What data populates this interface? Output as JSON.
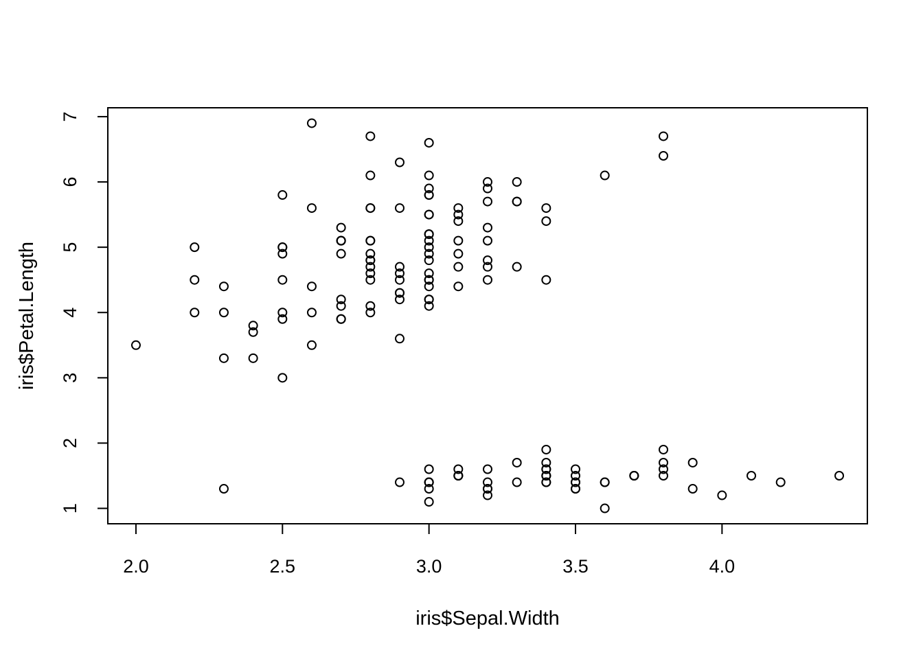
{
  "chart_data": {
    "type": "scatter",
    "title": "",
    "xlabel": "iris$Sepal.Width",
    "ylabel": "iris$Petal.Length",
    "xlim": [
      1.904,
      4.496
    ],
    "ylim": [
      0.764,
      7.136
    ],
    "x_ticks": [
      {
        "value": 2.0,
        "label": "2.0"
      },
      {
        "value": 2.5,
        "label": "2.5"
      },
      {
        "value": 3.0,
        "label": "3.0"
      },
      {
        "value": 3.5,
        "label": "3.5"
      },
      {
        "value": 4.0,
        "label": "4.0"
      }
    ],
    "y_ticks": [
      {
        "value": 1,
        "label": "1"
      },
      {
        "value": 2,
        "label": "2"
      },
      {
        "value": 3,
        "label": "3"
      },
      {
        "value": 4,
        "label": "4"
      },
      {
        "value": 5,
        "label": "5"
      },
      {
        "value": 6,
        "label": "6"
      },
      {
        "value": 7,
        "label": "7"
      }
    ],
    "grid": false,
    "marker": "open-circle",
    "colors": {
      "points": "#000000",
      "frame": "#000000",
      "background": "#ffffff"
    },
    "points": [
      [
        3.5,
        1.4
      ],
      [
        3.0,
        1.4
      ],
      [
        3.2,
        1.3
      ],
      [
        3.1,
        1.5
      ],
      [
        3.6,
        1.4
      ],
      [
        3.9,
        1.7
      ],
      [
        3.4,
        1.4
      ],
      [
        3.4,
        1.5
      ],
      [
        2.9,
        1.4
      ],
      [
        3.1,
        1.5
      ],
      [
        3.7,
        1.5
      ],
      [
        3.4,
        1.6
      ],
      [
        3.0,
        1.4
      ],
      [
        3.0,
        1.1
      ],
      [
        4.0,
        1.2
      ],
      [
        4.4,
        1.5
      ],
      [
        3.9,
        1.3
      ],
      [
        3.5,
        1.4
      ],
      [
        3.8,
        1.7
      ],
      [
        3.8,
        1.5
      ],
      [
        3.4,
        1.7
      ],
      [
        3.7,
        1.5
      ],
      [
        3.6,
        1.0
      ],
      [
        3.3,
        1.7
      ],
      [
        3.4,
        1.9
      ],
      [
        3.0,
        1.6
      ],
      [
        3.4,
        1.6
      ],
      [
        3.5,
        1.5
      ],
      [
        3.4,
        1.4
      ],
      [
        3.2,
        1.6
      ],
      [
        3.1,
        1.6
      ],
      [
        3.4,
        1.5
      ],
      [
        4.1,
        1.5
      ],
      [
        4.2,
        1.4
      ],
      [
        3.1,
        1.5
      ],
      [
        3.2,
        1.2
      ],
      [
        3.5,
        1.3
      ],
      [
        3.6,
        1.4
      ],
      [
        3.0,
        1.3
      ],
      [
        3.4,
        1.5
      ],
      [
        3.5,
        1.3
      ],
      [
        2.3,
        1.3
      ],
      [
        3.2,
        1.3
      ],
      [
        3.5,
        1.6
      ],
      [
        3.8,
        1.9
      ],
      [
        3.0,
        1.4
      ],
      [
        3.8,
        1.6
      ],
      [
        3.2,
        1.4
      ],
      [
        3.7,
        1.5
      ],
      [
        3.3,
        1.4
      ],
      [
        3.2,
        4.7
      ],
      [
        3.2,
        4.5
      ],
      [
        3.1,
        4.9
      ],
      [
        2.3,
        4.0
      ],
      [
        2.8,
        4.6
      ],
      [
        2.8,
        4.5
      ],
      [
        3.3,
        4.7
      ],
      [
        2.4,
        3.3
      ],
      [
        2.9,
        4.6
      ],
      [
        2.7,
        3.9
      ],
      [
        2.0,
        3.5
      ],
      [
        3.0,
        4.2
      ],
      [
        2.2,
        4.0
      ],
      [
        2.9,
        4.7
      ],
      [
        2.9,
        3.6
      ],
      [
        3.1,
        4.4
      ],
      [
        3.0,
        4.5
      ],
      [
        2.7,
        4.1
      ],
      [
        2.2,
        4.5
      ],
      [
        2.5,
        3.9
      ],
      [
        3.2,
        4.8
      ],
      [
        2.8,
        4.0
      ],
      [
        2.5,
        4.9
      ],
      [
        2.8,
        4.7
      ],
      [
        2.9,
        4.3
      ],
      [
        3.0,
        4.4
      ],
      [
        2.8,
        4.8
      ],
      [
        3.0,
        5.0
      ],
      [
        2.9,
        4.5
      ],
      [
        2.6,
        3.5
      ],
      [
        2.4,
        3.8
      ],
      [
        2.4,
        3.7
      ],
      [
        2.7,
        3.9
      ],
      [
        2.7,
        5.1
      ],
      [
        3.0,
        4.5
      ],
      [
        3.4,
        4.5
      ],
      [
        3.1,
        4.7
      ],
      [
        2.3,
        4.4
      ],
      [
        3.0,
        4.1
      ],
      [
        2.5,
        4.0
      ],
      [
        2.6,
        4.4
      ],
      [
        3.0,
        4.6
      ],
      [
        2.6,
        4.0
      ],
      [
        2.3,
        3.3
      ],
      [
        2.7,
        4.2
      ],
      [
        3.0,
        4.2
      ],
      [
        2.9,
        4.2
      ],
      [
        2.9,
        4.3
      ],
      [
        2.5,
        3.0
      ],
      [
        2.8,
        4.1
      ],
      [
        3.3,
        6.0
      ],
      [
        2.7,
        5.1
      ],
      [
        3.0,
        5.9
      ],
      [
        2.9,
        5.6
      ],
      [
        3.0,
        5.8
      ],
      [
        3.0,
        6.6
      ],
      [
        2.5,
        4.5
      ],
      [
        2.9,
        6.3
      ],
      [
        2.5,
        5.8
      ],
      [
        3.6,
        6.1
      ],
      [
        3.2,
        5.1
      ],
      [
        2.7,
        5.3
      ],
      [
        3.0,
        5.5
      ],
      [
        2.5,
        5.0
      ],
      [
        2.8,
        5.1
      ],
      [
        3.2,
        5.3
      ],
      [
        3.0,
        5.5
      ],
      [
        3.8,
        6.7
      ],
      [
        2.6,
        6.9
      ],
      [
        2.2,
        5.0
      ],
      [
        3.2,
        5.7
      ],
      [
        2.8,
        4.9
      ],
      [
        2.8,
        6.7
      ],
      [
        2.7,
        4.9
      ],
      [
        3.3,
        5.7
      ],
      [
        3.2,
        6.0
      ],
      [
        2.8,
        4.8
      ],
      [
        3.0,
        4.9
      ],
      [
        2.8,
        5.6
      ],
      [
        3.0,
        5.8
      ],
      [
        2.8,
        6.1
      ],
      [
        3.8,
        6.4
      ],
      [
        2.8,
        5.6
      ],
      [
        2.8,
        5.1
      ],
      [
        2.6,
        5.6
      ],
      [
        3.0,
        6.1
      ],
      [
        3.4,
        5.6
      ],
      [
        3.1,
        5.5
      ],
      [
        3.0,
        4.8
      ],
      [
        3.1,
        5.4
      ],
      [
        3.1,
        5.6
      ],
      [
        3.1,
        5.1
      ],
      [
        2.7,
        5.1
      ],
      [
        3.2,
        5.9
      ],
      [
        3.3,
        5.7
      ],
      [
        3.0,
        5.2
      ],
      [
        2.5,
        5.0
      ],
      [
        3.0,
        5.2
      ],
      [
        3.4,
        5.4
      ],
      [
        3.0,
        5.1
      ]
    ]
  }
}
